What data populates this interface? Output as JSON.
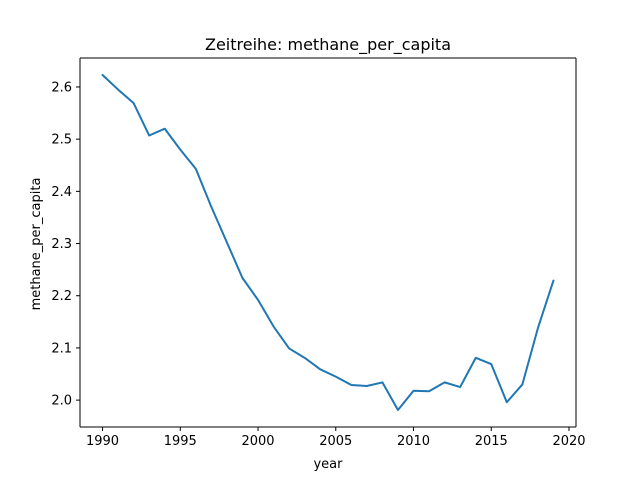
{
  "chart_data": {
    "type": "line",
    "title": "Zeitreihe: methane_per_capita",
    "xlabel": "year",
    "ylabel": "methane_per_capita",
    "xlim": [
      1988.55,
      2020.45
    ],
    "ylim": [
      1.9485,
      2.6555
    ],
    "xticks": [
      1990,
      1995,
      2000,
      2005,
      2010,
      2015,
      2020
    ],
    "yticks": [
      2.0,
      2.1,
      2.2,
      2.3,
      2.4,
      2.5,
      2.6
    ],
    "ytick_labels": [
      "2.0",
      "2.1",
      "2.2",
      "2.3",
      "2.4",
      "2.5",
      "2.6"
    ],
    "grid": false,
    "colors": {
      "series": "#1f77b4"
    },
    "series": [
      {
        "x": [
          1990,
          1991,
          1992,
          1993,
          1994,
          1995,
          1996,
          1997,
          1998,
          1999,
          2000,
          2001,
          2002,
          2003,
          2004,
          2005,
          2006,
          2007,
          2008,
          2009,
          2010,
          2011,
          2012,
          2013,
          2014,
          2015,
          2016,
          2017,
          2018,
          2019
        ],
        "values": [
          2.623,
          2.595,
          2.569,
          2.507,
          2.52,
          2.48,
          2.443,
          2.37,
          2.302,
          2.234,
          2.192,
          2.141,
          2.099,
          2.081,
          2.059,
          2.045,
          2.029,
          2.027,
          2.034,
          1.981,
          2.018,
          2.017,
          2.034,
          2.025,
          2.081,
          2.069,
          1.996,
          2.03,
          2.138,
          2.229
        ]
      }
    ]
  }
}
